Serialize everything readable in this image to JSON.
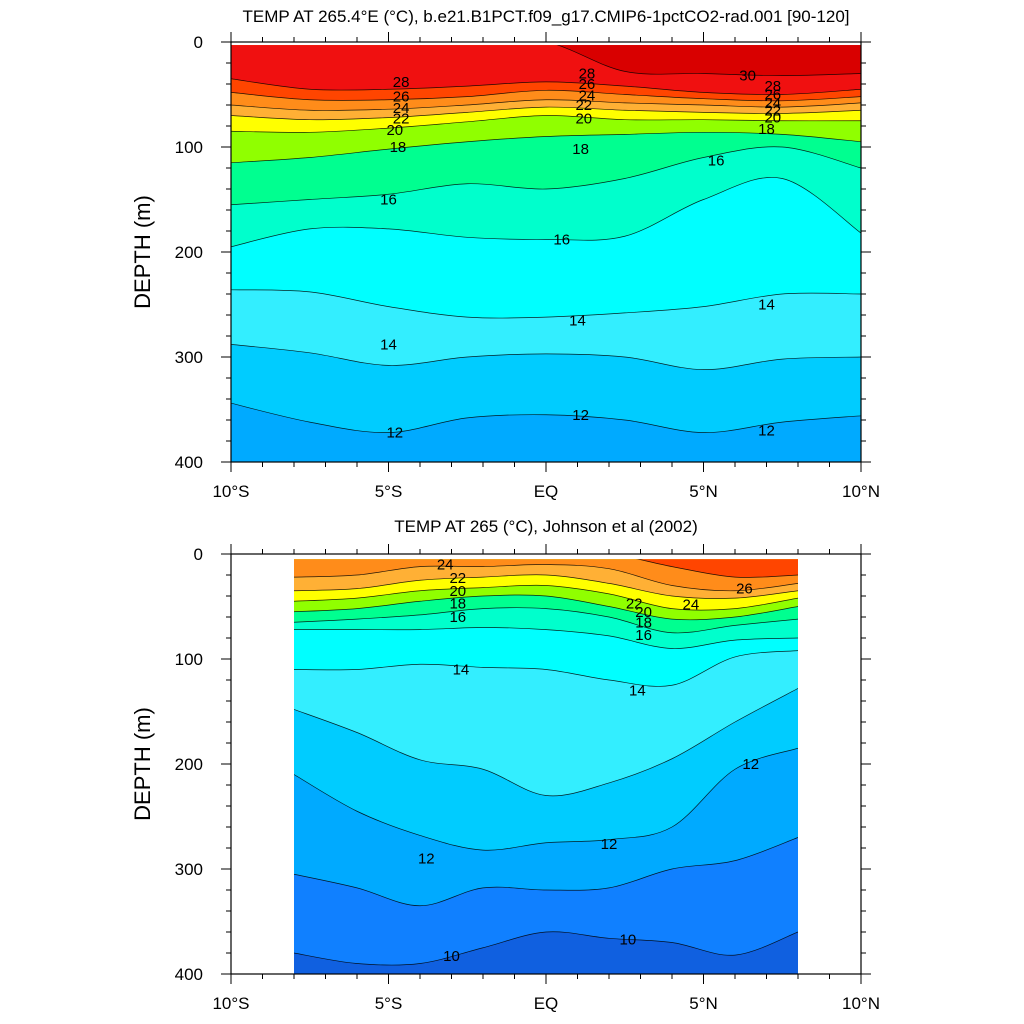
{
  "chart_data": [
    {
      "type": "heatmap",
      "title": "TEMP AT 265.4°E (°C), b.e21.B1PCT.f09_g17.CMIP6-1pctCO2-rad.001 [90-120]",
      "ylabel": "DEPTH (m)",
      "xlim": [
        -10,
        10
      ],
      "ylim": [
        400,
        0
      ],
      "y_reversed": true,
      "x_ticks": [
        {
          "value": -10,
          "label": "10°S"
        },
        {
          "value": -5,
          "label": "5°S"
        },
        {
          "value": 0,
          "label": "EQ"
        },
        {
          "value": 5,
          "label": "5°N"
        },
        {
          "value": 10,
          "label": "10°N"
        }
      ],
      "y_ticks": [
        0,
        100,
        200,
        300,
        400
      ],
      "data_x_range": [
        -10,
        10
      ],
      "columns": [
        -10,
        -7.5,
        -5,
        -2.5,
        0,
        2.5,
        5,
        7.5,
        10
      ],
      "isotherms": [
        {
          "level": 30,
          "depth": [
            -1,
            -1,
            -1,
            -1,
            -1,
            28,
            30,
            32,
            30
          ]
        },
        {
          "level": 28,
          "depth": [
            35,
            45,
            45,
            42,
            38,
            42,
            48,
            50,
            45
          ]
        },
        {
          "level": 26,
          "depth": [
            48,
            55,
            55,
            52,
            46,
            50,
            54,
            56,
            52
          ]
        },
        {
          "level": 24,
          "depth": [
            60,
            65,
            64,
            60,
            55,
            58,
            60,
            62,
            58
          ]
        },
        {
          "level": 22,
          "depth": [
            70,
            74,
            72,
            67,
            62,
            65,
            67,
            68,
            65
          ]
        },
        {
          "level": 20,
          "depth": [
            85,
            86,
            82,
            76,
            70,
            74,
            74,
            75,
            75
          ]
        },
        {
          "level": 18,
          "depth": [
            115,
            110,
            102,
            95,
            90,
            88,
            86,
            88,
            95
          ]
        },
        {
          "level": 16,
          "depth": [
            155,
            150,
            145,
            135,
            140,
            130,
            110,
            100,
            120
          ]
        },
        {
          "level": 15,
          "depth": [
            195,
            178,
            178,
            186,
            188,
            185,
            150,
            130,
            182
          ]
        },
        {
          "level": 14,
          "depth": [
            236,
            238,
            252,
            262,
            262,
            258,
            252,
            240,
            240
          ]
        },
        {
          "level": 13,
          "depth": [
            288,
            296,
            308,
            300,
            297,
            300,
            312,
            302,
            300
          ]
        },
        {
          "level": 12,
          "depth": [
            344,
            362,
            372,
            358,
            355,
            360,
            372,
            362,
            356
          ]
        },
        {
          "level": 11,
          "depth": [
            -1,
            -1,
            -1,
            -1,
            -1,
            -1,
            -1,
            -1,
            -1
          ]
        }
      ],
      "labels": [
        {
          "text": "28",
          "x": -4.6,
          "y": 38
        },
        {
          "text": "26",
          "x": -4.6,
          "y": 52
        },
        {
          "text": "24",
          "x": -4.6,
          "y": 63
        },
        {
          "text": "22",
          "x": -4.6,
          "y": 73
        },
        {
          "text": "20",
          "x": -4.8,
          "y": 84
        },
        {
          "text": "18",
          "x": -4.7,
          "y": 100
        },
        {
          "text": "28",
          "x": 1.3,
          "y": 30
        },
        {
          "text": "26",
          "x": 1.3,
          "y": 40
        },
        {
          "text": "24",
          "x": 1.3,
          "y": 51
        },
        {
          "text": "22",
          "x": 1.2,
          "y": 60
        },
        {
          "text": "20",
          "x": 1.2,
          "y": 73
        },
        {
          "text": "18",
          "x": 1.1,
          "y": 102
        },
        {
          "text": "30",
          "x": 6.4,
          "y": 32
        },
        {
          "text": "28",
          "x": 7.2,
          "y": 42
        },
        {
          "text": "26",
          "x": 7.2,
          "y": 50
        },
        {
          "text": "24",
          "x": 7.2,
          "y": 58
        },
        {
          "text": "22",
          "x": 7.2,
          "y": 65
        },
        {
          "text": "20",
          "x": 7.2,
          "y": 72
        },
        {
          "text": "18",
          "x": 7.0,
          "y": 83
        },
        {
          "text": "16",
          "x": 5.4,
          "y": 113
        },
        {
          "text": "16",
          "x": -5.0,
          "y": 150
        },
        {
          "text": "16",
          "x": 0.5,
          "y": 188
        },
        {
          "text": "14",
          "x": -5.0,
          "y": 288
        },
        {
          "text": "14",
          "x": 1.0,
          "y": 265
        },
        {
          "text": "14",
          "x": 7.0,
          "y": 250
        },
        {
          "text": "12",
          "x": -4.8,
          "y": 372
        },
        {
          "text": "12",
          "x": 1.1,
          "y": 355
        },
        {
          "text": "12",
          "x": 7.0,
          "y": 370
        }
      ]
    },
    {
      "type": "heatmap",
      "title": "TEMP AT 265 (°C), Johnson et al (2002)",
      "ylabel": "DEPTH (m)",
      "xlim": [
        -10,
        10
      ],
      "ylim": [
        400,
        0
      ],
      "y_reversed": true,
      "x_ticks": [
        {
          "value": -10,
          "label": "10°S"
        },
        {
          "value": -5,
          "label": "5°S"
        },
        {
          "value": 0,
          "label": "EQ"
        },
        {
          "value": 5,
          "label": "5°N"
        },
        {
          "value": 10,
          "label": "10°N"
        }
      ],
      "y_ticks": [
        0,
        100,
        200,
        300,
        400
      ],
      "data_x_range": [
        -8,
        8
      ],
      "columns": [
        -8,
        -6,
        -4,
        -2,
        0,
        2,
        4,
        6,
        8
      ],
      "isotherms": [
        {
          "level": 26,
          "depth": [
            -1,
            -1,
            -1,
            -1,
            -1,
            -1,
            12,
            22,
            20
          ]
        },
        {
          "level": 24,
          "depth": [
            22,
            20,
            12,
            12,
            10,
            14,
            30,
            35,
            28
          ]
        },
        {
          "level": 22,
          "depth": [
            35,
            33,
            25,
            22,
            20,
            28,
            40,
            42,
            35
          ]
        },
        {
          "level": 20,
          "depth": [
            45,
            42,
            35,
            32,
            30,
            38,
            52,
            52,
            42
          ]
        },
        {
          "level": 18,
          "depth": [
            55,
            52,
            45,
            40,
            40,
            50,
            62,
            60,
            50
          ]
        },
        {
          "level": 16,
          "depth": [
            65,
            62,
            58,
            52,
            52,
            60,
            75,
            68,
            62
          ]
        },
        {
          "level": 15,
          "depth": [
            72,
            72,
            72,
            70,
            72,
            78,
            90,
            82,
            80
          ]
        },
        {
          "level": 14,
          "depth": [
            110,
            110,
            105,
            108,
            110,
            120,
            125,
            98,
            92
          ]
        },
        {
          "level": 13,
          "depth": [
            148,
            170,
            196,
            205,
            230,
            218,
            195,
            160,
            128
          ]
        },
        {
          "level": 12,
          "depth": [
            210,
            245,
            268,
            282,
            275,
            272,
            260,
            205,
            185
          ]
        },
        {
          "level": 11,
          "depth": [
            305,
            318,
            335,
            318,
            320,
            318,
            300,
            292,
            270
          ]
        },
        {
          "level": 10,
          "depth": [
            380,
            390,
            390,
            375,
            360,
            366,
            370,
            382,
            360
          ]
        }
      ],
      "labels": [
        {
          "text": "24",
          "x": -3.2,
          "y": 10
        },
        {
          "text": "22",
          "x": -2.8,
          "y": 23
        },
        {
          "text": "20",
          "x": -2.8,
          "y": 35
        },
        {
          "text": "18",
          "x": -2.8,
          "y": 47
        },
        {
          "text": "16",
          "x": -2.8,
          "y": 60
        },
        {
          "text": "22",
          "x": 2.8,
          "y": 47
        },
        {
          "text": "20",
          "x": 3.1,
          "y": 55
        },
        {
          "text": "18",
          "x": 3.1,
          "y": 65
        },
        {
          "text": "16",
          "x": 3.1,
          "y": 77
        },
        {
          "text": "24",
          "x": 4.6,
          "y": 48
        },
        {
          "text": "26",
          "x": 6.3,
          "y": 33
        },
        {
          "text": "14",
          "x": -2.7,
          "y": 110
        },
        {
          "text": "14",
          "x": 2.9,
          "y": 130
        },
        {
          "text": "12",
          "x": 6.5,
          "y": 200
        },
        {
          "text": "12",
          "x": -3.8,
          "y": 290
        },
        {
          "text": "12",
          "x": 2.0,
          "y": 276
        },
        {
          "text": "10",
          "x": -3.0,
          "y": 383
        },
        {
          "text": "10",
          "x": 2.6,
          "y": 367
        }
      ]
    }
  ],
  "colors": {
    "palette": {
      "32": "#c00000",
      "30": "#d90000",
      "28": "#f01010",
      "26": "#ff4500",
      "24": "#ff8c1a",
      "22": "#ffb035",
      "21": "#ffd040",
      "20": "#ffff00",
      "19": "#c8ff00",
      "18": "#90ff00",
      "17": "#30e040",
      "16": "#00ff90",
      "15": "#00ffcc",
      "14": "#00ffff",
      "13": "#33eeff",
      "12": "#00ccff",
      "11": "#00aaff",
      "10": "#1080ff",
      "9": "#1060e0"
    },
    "deep_bottom": "#1aa8f0",
    "deep_bottom_obs": "#1060e0"
  }
}
